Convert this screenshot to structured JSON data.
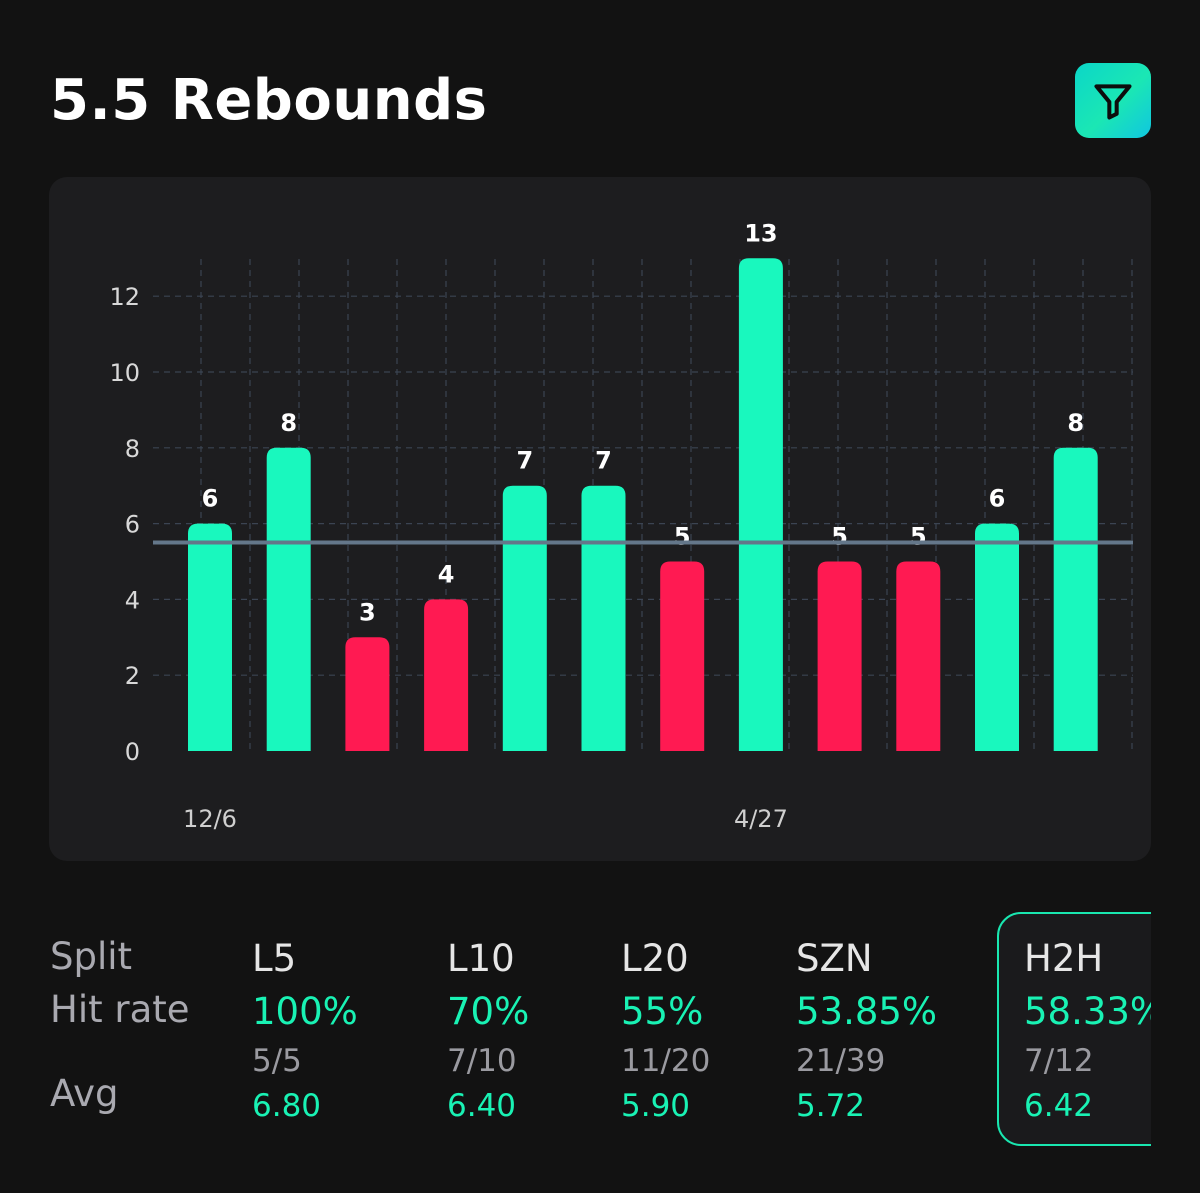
{
  "header": {
    "title": "5.5 Rebounds",
    "filter_icon": "filter-icon"
  },
  "colors": {
    "hit": "#19f8be",
    "miss": "#ff1a52",
    "line": "#64778a",
    "accent": "#19f2b4"
  },
  "chart_data": {
    "type": "bar",
    "values": [
      6,
      8,
      3,
      4,
      7,
      7,
      5,
      13,
      5,
      5,
      6,
      8
    ],
    "x_labels": [
      "12/6",
      "",
      "",
      "",
      "",
      "",
      "",
      "4/27",
      "",
      "",
      "",
      ""
    ],
    "threshold": 5.5,
    "y_ticks": [
      0,
      2,
      4,
      6,
      8,
      10,
      12
    ],
    "ylim": [
      0,
      13
    ],
    "title": "5.5 Rebounds",
    "grid": true
  },
  "stats": {
    "row_labels": {
      "split": "Split",
      "hit_rate": "Hit rate",
      "avg": "Avg"
    },
    "columns": [
      {
        "name": "L5",
        "hit_rate": "100%",
        "record": "5/5",
        "avg": "6.80",
        "selected": false
      },
      {
        "name": "L10",
        "hit_rate": "70%",
        "record": "7/10",
        "avg": "6.40",
        "selected": false
      },
      {
        "name": "L20",
        "hit_rate": "55%",
        "record": "11/20",
        "avg": "5.90",
        "selected": false
      },
      {
        "name": "SZN",
        "hit_rate": "53.85%",
        "record": "21/39",
        "avg": "5.72",
        "selected": false
      },
      {
        "name": "H2H",
        "hit_rate": "58.33%",
        "record": "7/12",
        "avg": "6.42",
        "selected": true
      }
    ]
  }
}
